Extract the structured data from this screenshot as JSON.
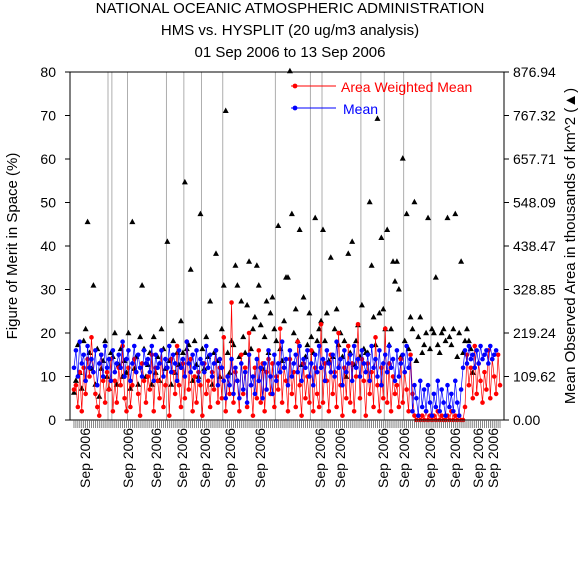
{
  "chart_data": {
    "type": "scatter",
    "title": "NATIONAL OCEANIC ATMOSPHERIC ADMINISTRATION",
    "subtitle": "HMS vs. HYSPLIT (20 ug/m3 analysis)",
    "date_range": "01 Sep 2006 to 13 Sep 2006",
    "ylabel_left": "Figure of Merit in Space (%)",
    "ylabel_right": "Mean Observed Area in thousands of km^2 (▲)",
    "ylim_left": [
      0,
      80
    ],
    "ylim_right": [
      0,
      876.94
    ],
    "left_ticks": [
      "0",
      "10",
      "20",
      "30",
      "40",
      "50",
      "60",
      "70",
      "80"
    ],
    "right_ticks": [
      "0.00",
      "109.62",
      "219.24",
      "328.85",
      "438.47",
      "548.09",
      "657.71",
      "767.32",
      "876.94"
    ],
    "x_tick_labels": [
      "Sep 2006",
      "Sep 2006",
      "Sep 2006",
      "Sep 2006",
      "Sep 2006",
      "Sep 2006",
      "Sep 2006",
      "Sep 2006",
      "Sep 2006",
      "Sep 2006",
      "Sep 2006",
      "Sep 2006",
      "Sep 2006",
      "Sep 2006",
      "Sep 2006"
    ],
    "legend_position": "top-right",
    "grid": "vertical lines at group boundaries",
    "series": [
      {
        "name": "Area Weighted Mean",
        "color": "#ff0000",
        "marker": "circle",
        "values": [
          7,
          8,
          3,
          11,
          2,
          12,
          6,
          14,
          10,
          19,
          11,
          6,
          3,
          1,
          15,
          9,
          4,
          11,
          7,
          14,
          2,
          9,
          4,
          12,
          8,
          17,
          5,
          2,
          12,
          3,
          8,
          14,
          11,
          6,
          1,
          13,
          9,
          4,
          10,
          7,
          15,
          2,
          12,
          9,
          5,
          16,
          3,
          8,
          12,
          1,
          14,
          11,
          6,
          17,
          8,
          3,
          13,
          5,
          18,
          7,
          14,
          2,
          10,
          4,
          11,
          8,
          1,
          13,
          6,
          9,
          3,
          11,
          7,
          16,
          4,
          12,
          5,
          19,
          2,
          10,
          6,
          27,
          4,
          11,
          9,
          2,
          15,
          6,
          12,
          3,
          20,
          8,
          1,
          12,
          5,
          16,
          4,
          13,
          2,
          11,
          14,
          6,
          13,
          3,
          10,
          7,
          21,
          4,
          12,
          9,
          2,
          14,
          6,
          11,
          3,
          18,
          8,
          1,
          13,
          5,
          10,
          4,
          16,
          2,
          12,
          6,
          3,
          22,
          4,
          13,
          9,
          2,
          15,
          6,
          11,
          3,
          20,
          8,
          1,
          12,
          5,
          17,
          4,
          13,
          2,
          10,
          22,
          5,
          14,
          9,
          1,
          13,
          6,
          11,
          3,
          19,
          8,
          2,
          12,
          5,
          21,
          4,
          13,
          2,
          10,
          6,
          8,
          3,
          14,
          4,
          11,
          7,
          2,
          15,
          6,
          1,
          0,
          1,
          0,
          1,
          0,
          2,
          0,
          1,
          0,
          1,
          0,
          2,
          0,
          1,
          0,
          0,
          1,
          0,
          2,
          0,
          1,
          0,
          1,
          0,
          0,
          3,
          15,
          8,
          12,
          5,
          17,
          6,
          13,
          9,
          4,
          11,
          7,
          16,
          5,
          14,
          10,
          6,
          15,
          8
        ]
      },
      {
        "name": "Mean",
        "color": "#0000ff",
        "marker": "circle",
        "values": [
          12,
          16,
          10,
          18,
          13,
          15,
          9,
          17,
          12,
          14,
          11,
          16,
          8,
          13,
          15,
          10,
          17,
          12,
          14,
          9,
          16,
          11,
          13,
          15,
          12,
          18,
          10,
          14,
          16,
          9,
          13,
          17,
          11,
          15,
          12,
          10,
          16,
          13,
          14,
          11,
          17,
          9,
          15,
          12,
          13,
          16,
          10,
          14,
          12,
          17,
          11,
          15,
          13,
          9,
          16,
          12,
          14,
          10,
          18,
          13,
          11,
          15,
          12,
          16,
          9,
          14,
          13,
          11,
          17,
          12,
          15,
          10,
          13,
          16,
          8,
          14,
          12,
          9,
          5,
          10,
          8,
          14,
          6,
          12,
          9,
          5,
          13,
          7,
          11,
          4,
          15,
          8,
          10,
          6,
          14,
          9,
          12,
          5,
          13,
          7,
          16,
          10,
          6,
          15,
          9,
          13,
          11,
          18,
          12,
          14,
          8,
          16,
          10,
          13,
          15,
          11,
          17,
          9,
          14,
          12,
          16,
          10,
          13,
          8,
          15,
          11,
          17,
          12,
          14,
          9,
          16,
          13,
          11,
          15,
          10,
          18,
          12,
          14,
          8,
          16,
          11,
          13,
          15,
          9,
          17,
          12,
          14,
          10,
          16,
          13,
          11,
          15,
          9,
          17,
          12,
          14,
          10,
          16,
          8,
          13,
          15,
          11,
          17,
          12,
          14,
          9,
          16,
          10,
          13,
          15,
          11,
          17,
          12,
          14,
          2,
          8,
          5,
          1,
          9,
          3,
          7,
          2,
          8,
          4,
          1,
          6,
          3,
          9,
          2,
          7,
          4,
          1,
          8,
          3,
          6,
          2,
          9,
          4,
          1,
          7,
          12,
          16,
          13,
          17,
          14,
          15,
          12,
          16,
          13,
          17,
          14,
          15,
          16,
          13,
          17,
          14,
          15,
          16
        ]
      },
      {
        "name": "Mean Observed Area",
        "axis": "right",
        "marker": "triangle",
        "values": [
          70,
          100,
          190,
          120,
          80,
          200,
          230,
          500,
          170,
          130,
          340,
          90,
          180,
          60,
          130,
          150,
          200,
          110,
          80,
          170,
          160,
          220,
          90,
          140,
          180,
          110,
          150,
          120,
          220,
          80,
          500,
          130,
          160,
          90,
          210,
          340,
          180,
          110,
          140,
          170,
          90,
          210,
          120,
          160,
          100,
          230,
          180,
          130,
          450,
          150,
          90,
          200,
          120,
          170,
          140,
          250,
          170,
          600,
          180,
          190,
          380,
          100,
          200,
          140,
          110,
          520,
          180,
          130,
          210,
          160,
          300,
          90,
          170,
          420,
          150,
          110,
          230,
          340,
          780,
          170,
          120,
          200,
          190,
          390,
          340,
          160,
          300,
          210,
          170,
          290,
          400,
          180,
          230,
          260,
          390,
          340,
          240,
          130,
          210,
          300,
          170,
          270,
          310,
          230,
          200,
          490,
          180,
          150,
          250,
          360,
          360,
          880,
          520,
          220,
          280,
          200,
          480,
          140,
          310,
          160,
          190,
          270,
          210,
          170,
          510,
          200,
          230,
          250,
          480,
          200,
          270,
          150,
          410,
          160,
          230,
          280,
          190,
          220,
          160,
          200,
          110,
          420,
          170,
          450,
          140,
          200,
          240,
          160,
          290,
          180,
          170,
          170,
          550,
          390,
          260,
          190,
          760,
          270,
          460,
          280,
          230,
          480,
          190,
          230,
          400,
          350,
          400,
          330,
          160,
          660,
          200,
          520,
          180,
          260,
          230,
          550,
          150,
          210,
          260,
          170,
          190,
          220,
          510,
          180,
          230,
          220,
          360,
          190,
          170,
          220,
          230,
          200,
          510,
          210,
          190,
          230,
          520,
          160,
          220,
          400,
          170,
          200,
          230,
          200,
          180,
          120
        ]
      }
    ]
  }
}
